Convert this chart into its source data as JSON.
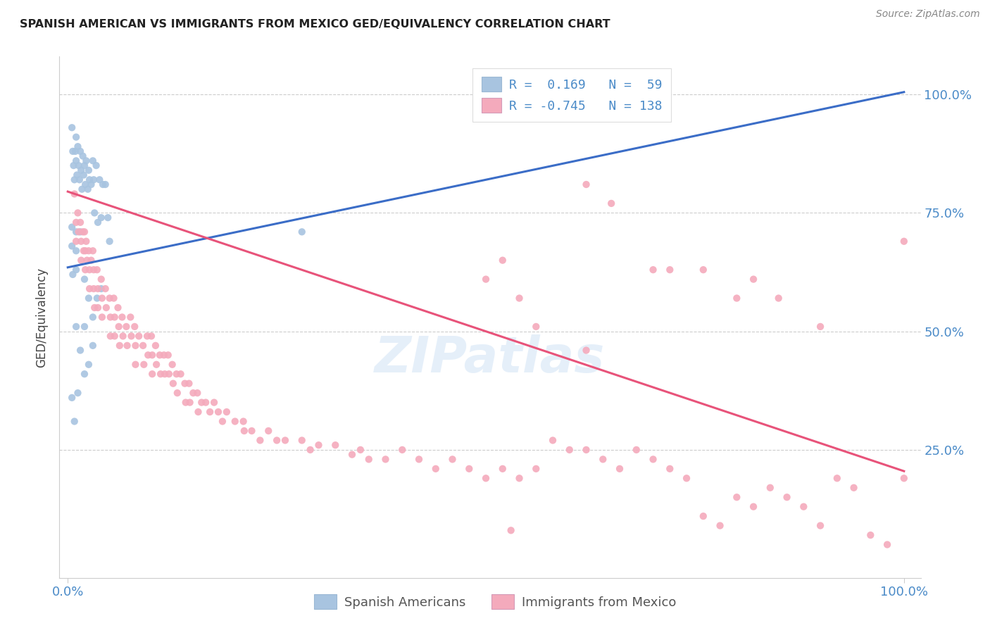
{
  "title": "SPANISH AMERICAN VS IMMIGRANTS FROM MEXICO GED/EQUIVALENCY CORRELATION CHART",
  "source": "Source: ZipAtlas.com",
  "ylabel": "GED/Equivalency",
  "watermark": "ZIPatlas",
  "blue_color": "#A8C4E0",
  "pink_color": "#F4AABC",
  "blue_line_color": "#3B6DC7",
  "pink_line_color": "#E8537A",
  "axis_label_color": "#4B8BC8",
  "title_color": "#222222",
  "ytick_labels": [
    "25.0%",
    "50.0%",
    "75.0%",
    "100.0%"
  ],
  "ytick_values": [
    0.25,
    0.5,
    0.75,
    1.0
  ],
  "xtick_labels": [
    "0.0%",
    "100.0%"
  ],
  "xtick_values": [
    0.0,
    1.0
  ],
  "xlim": [
    -0.01,
    1.02
  ],
  "ylim": [
    -0.02,
    1.08
  ],
  "blue_scatter": [
    [
      0.005,
      0.93
    ],
    [
      0.006,
      0.88
    ],
    [
      0.007,
      0.85
    ],
    [
      0.008,
      0.82
    ],
    [
      0.009,
      0.88
    ],
    [
      0.01,
      0.91
    ],
    [
      0.01,
      0.86
    ],
    [
      0.011,
      0.83
    ],
    [
      0.012,
      0.89
    ],
    [
      0.013,
      0.85
    ],
    [
      0.014,
      0.82
    ],
    [
      0.015,
      0.88
    ],
    [
      0.016,
      0.84
    ],
    [
      0.017,
      0.8
    ],
    [
      0.018,
      0.87
    ],
    [
      0.019,
      0.83
    ],
    [
      0.02,
      0.85
    ],
    [
      0.021,
      0.81
    ],
    [
      0.022,
      0.86
    ],
    [
      0.024,
      0.8
    ],
    [
      0.025,
      0.84
    ],
    [
      0.026,
      0.82
    ],
    [
      0.028,
      0.81
    ],
    [
      0.03,
      0.86
    ],
    [
      0.031,
      0.82
    ],
    [
      0.032,
      0.75
    ],
    [
      0.034,
      0.85
    ],
    [
      0.036,
      0.73
    ],
    [
      0.038,
      0.82
    ],
    [
      0.04,
      0.74
    ],
    [
      0.042,
      0.81
    ],
    [
      0.045,
      0.81
    ],
    [
      0.048,
      0.74
    ],
    [
      0.05,
      0.69
    ],
    [
      0.005,
      0.68
    ],
    [
      0.006,
      0.62
    ],
    [
      0.01,
      0.67
    ],
    [
      0.01,
      0.63
    ],
    [
      0.015,
      0.71
    ],
    [
      0.02,
      0.61
    ],
    [
      0.025,
      0.57
    ],
    [
      0.03,
      0.53
    ],
    [
      0.035,
      0.57
    ],
    [
      0.04,
      0.59
    ],
    [
      0.01,
      0.51
    ],
    [
      0.015,
      0.46
    ],
    [
      0.02,
      0.41
    ],
    [
      0.005,
      0.36
    ],
    [
      0.008,
      0.31
    ],
    [
      0.012,
      0.37
    ],
    [
      0.28,
      0.71
    ],
    [
      0.005,
      0.72
    ],
    [
      0.01,
      0.71
    ],
    [
      0.02,
      0.51
    ],
    [
      0.025,
      0.43
    ],
    [
      0.03,
      0.47
    ]
  ],
  "pink_scatter": [
    [
      0.008,
      0.79
    ],
    [
      0.01,
      0.73
    ],
    [
      0.01,
      0.69
    ],
    [
      0.012,
      0.75
    ],
    [
      0.013,
      0.71
    ],
    [
      0.015,
      0.73
    ],
    [
      0.016,
      0.69
    ],
    [
      0.016,
      0.65
    ],
    [
      0.018,
      0.71
    ],
    [
      0.019,
      0.67
    ],
    [
      0.02,
      0.71
    ],
    [
      0.021,
      0.67
    ],
    [
      0.021,
      0.63
    ],
    [
      0.022,
      0.69
    ],
    [
      0.023,
      0.65
    ],
    [
      0.025,
      0.67
    ],
    [
      0.026,
      0.63
    ],
    [
      0.026,
      0.59
    ],
    [
      0.028,
      0.65
    ],
    [
      0.03,
      0.67
    ],
    [
      0.031,
      0.63
    ],
    [
      0.031,
      0.59
    ],
    [
      0.032,
      0.55
    ],
    [
      0.035,
      0.63
    ],
    [
      0.036,
      0.59
    ],
    [
      0.036,
      0.55
    ],
    [
      0.04,
      0.61
    ],
    [
      0.041,
      0.57
    ],
    [
      0.041,
      0.53
    ],
    [
      0.045,
      0.59
    ],
    [
      0.046,
      0.55
    ],
    [
      0.05,
      0.57
    ],
    [
      0.051,
      0.53
    ],
    [
      0.051,
      0.49
    ],
    [
      0.055,
      0.57
    ],
    [
      0.056,
      0.53
    ],
    [
      0.056,
      0.49
    ],
    [
      0.06,
      0.55
    ],
    [
      0.061,
      0.51
    ],
    [
      0.062,
      0.47
    ],
    [
      0.065,
      0.53
    ],
    [
      0.066,
      0.49
    ],
    [
      0.07,
      0.51
    ],
    [
      0.071,
      0.47
    ],
    [
      0.075,
      0.53
    ],
    [
      0.076,
      0.49
    ],
    [
      0.08,
      0.51
    ],
    [
      0.081,
      0.47
    ],
    [
      0.081,
      0.43
    ],
    [
      0.085,
      0.49
    ],
    [
      0.09,
      0.47
    ],
    [
      0.091,
      0.43
    ],
    [
      0.095,
      0.49
    ],
    [
      0.096,
      0.45
    ],
    [
      0.1,
      0.49
    ],
    [
      0.101,
      0.45
    ],
    [
      0.101,
      0.41
    ],
    [
      0.105,
      0.47
    ],
    [
      0.106,
      0.43
    ],
    [
      0.11,
      0.45
    ],
    [
      0.111,
      0.41
    ],
    [
      0.115,
      0.45
    ],
    [
      0.116,
      0.41
    ],
    [
      0.12,
      0.45
    ],
    [
      0.121,
      0.41
    ],
    [
      0.125,
      0.43
    ],
    [
      0.126,
      0.39
    ],
    [
      0.13,
      0.41
    ],
    [
      0.131,
      0.37
    ],
    [
      0.135,
      0.41
    ],
    [
      0.14,
      0.39
    ],
    [
      0.141,
      0.35
    ],
    [
      0.145,
      0.39
    ],
    [
      0.146,
      0.35
    ],
    [
      0.15,
      0.37
    ],
    [
      0.155,
      0.37
    ],
    [
      0.156,
      0.33
    ],
    [
      0.16,
      0.35
    ],
    [
      0.165,
      0.35
    ],
    [
      0.17,
      0.33
    ],
    [
      0.175,
      0.35
    ],
    [
      0.18,
      0.33
    ],
    [
      0.185,
      0.31
    ],
    [
      0.19,
      0.33
    ],
    [
      0.2,
      0.31
    ],
    [
      0.21,
      0.31
    ],
    [
      0.211,
      0.29
    ],
    [
      0.22,
      0.29
    ],
    [
      0.23,
      0.27
    ],
    [
      0.24,
      0.29
    ],
    [
      0.25,
      0.27
    ],
    [
      0.26,
      0.27
    ],
    [
      0.28,
      0.27
    ],
    [
      0.29,
      0.25
    ],
    [
      0.3,
      0.26
    ],
    [
      0.32,
      0.26
    ],
    [
      0.34,
      0.24
    ],
    [
      0.35,
      0.25
    ],
    [
      0.36,
      0.23
    ],
    [
      0.38,
      0.23
    ],
    [
      0.4,
      0.25
    ],
    [
      0.42,
      0.23
    ],
    [
      0.44,
      0.21
    ],
    [
      0.46,
      0.23
    ],
    [
      0.48,
      0.21
    ],
    [
      0.5,
      0.19
    ],
    [
      0.52,
      0.21
    ],
    [
      0.53,
      0.08
    ],
    [
      0.54,
      0.19
    ],
    [
      0.56,
      0.21
    ],
    [
      0.58,
      0.27
    ],
    [
      0.6,
      0.25
    ],
    [
      0.62,
      0.25
    ],
    [
      0.64,
      0.23
    ],
    [
      0.66,
      0.21
    ],
    [
      0.68,
      0.25
    ],
    [
      0.7,
      0.23
    ],
    [
      0.72,
      0.21
    ],
    [
      0.74,
      0.19
    ],
    [
      0.76,
      0.11
    ],
    [
      0.78,
      0.09
    ],
    [
      0.8,
      0.15
    ],
    [
      0.82,
      0.13
    ],
    [
      0.84,
      0.17
    ],
    [
      0.86,
      0.15
    ],
    [
      0.88,
      0.13
    ],
    [
      0.9,
      0.09
    ],
    [
      0.92,
      0.19
    ],
    [
      0.94,
      0.17
    ],
    [
      0.96,
      0.07
    ],
    [
      0.98,
      0.05
    ],
    [
      1.0,
      0.19
    ],
    [
      0.62,
      0.81
    ],
    [
      0.65,
      0.77
    ],
    [
      0.7,
      0.63
    ],
    [
      0.72,
      0.63
    ],
    [
      0.76,
      0.63
    ],
    [
      0.8,
      0.57
    ],
    [
      0.82,
      0.61
    ],
    [
      0.85,
      0.57
    ],
    [
      0.9,
      0.51
    ],
    [
      1.0,
      0.69
    ],
    [
      0.5,
      0.61
    ],
    [
      0.52,
      0.65
    ],
    [
      0.54,
      0.57
    ],
    [
      0.56,
      0.51
    ],
    [
      0.62,
      0.46
    ]
  ],
  "blue_line_x": [
    0.0,
    1.0
  ],
  "blue_line_y": [
    0.635,
    1.005
  ],
  "pink_line_x": [
    0.0,
    1.0
  ],
  "pink_line_y": [
    0.795,
    0.205
  ],
  "legend_label1": "R =  0.169   N =  59",
  "legend_label2": "R = -0.745   N = 138",
  "bottom_legend1": "Spanish Americans",
  "bottom_legend2": "Immigrants from Mexico"
}
